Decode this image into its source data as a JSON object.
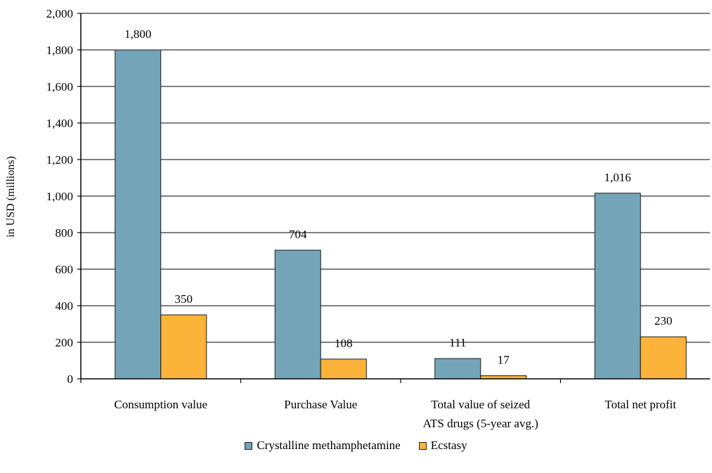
{
  "chart_data": {
    "type": "bar",
    "categories": [
      [
        "Consumption value"
      ],
      [
        "Purchase Value"
      ],
      [
        "Total value of seized",
        "ATS drugs (5-year avg.)"
      ],
      [
        "Total net profit"
      ]
    ],
    "series": [
      {
        "name": "Crystalline methamphetamine",
        "values": [
          1800,
          704,
          111,
          1016
        ],
        "labels": [
          "1,800",
          "704",
          "111",
          "1,016"
        ],
        "color": "#74a4b8"
      },
      {
        "name": "Ecstasy",
        "values": [
          350,
          108,
          17,
          230
        ],
        "labels": [
          "350",
          "108",
          "17",
          "230"
        ],
        "color": "#fbb33a"
      }
    ],
    "ylabel": "in USD (millions)",
    "ylim": [
      0,
      2000
    ],
    "yticks": [
      0,
      200,
      400,
      600,
      800,
      1000,
      1200,
      1400,
      1600,
      1800,
      2000
    ],
    "ytick_labels": [
      "0",
      "200",
      "400",
      "600",
      "800",
      "1,000",
      "1,200",
      "1,400",
      "1,600",
      "1,800",
      "2,000"
    ],
    "grid": true,
    "legend_position": "bottom"
  }
}
